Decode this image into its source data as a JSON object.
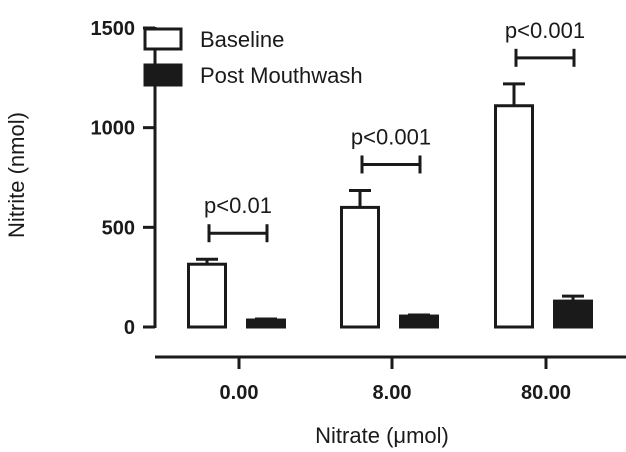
{
  "chart_data": {
    "type": "bar",
    "title": "",
    "xlabel": "Nitrate (μmol)",
    "ylabel": "Nitrite (nmol)",
    "ylim": [
      0,
      1500
    ],
    "yticks": [
      "0",
      "500",
      "1000",
      "1500"
    ],
    "ytick_values": [
      0,
      500,
      1000,
      1500
    ],
    "categories": [
      "0.00",
      "8.00",
      "80.00"
    ],
    "legend_position": "top-left",
    "grid": false,
    "series": [
      {
        "name": "Baseline",
        "style": "outline",
        "color": "#1a1a1a",
        "values": [
          315,
          600,
          1110
        ],
        "errors": [
          25,
          85,
          110
        ]
      },
      {
        "name": "Post Mouthwash",
        "style": "filled",
        "color": "#1a1a1a",
        "values": [
          35,
          55,
          130
        ],
        "errors": [
          5,
          5,
          25
        ]
      }
    ],
    "annotations": [
      {
        "category": "0.00",
        "text": "p<0.01"
      },
      {
        "category": "8.00",
        "text": "p<0.001"
      },
      {
        "category": "80.00",
        "text": "p<0.001"
      }
    ]
  }
}
